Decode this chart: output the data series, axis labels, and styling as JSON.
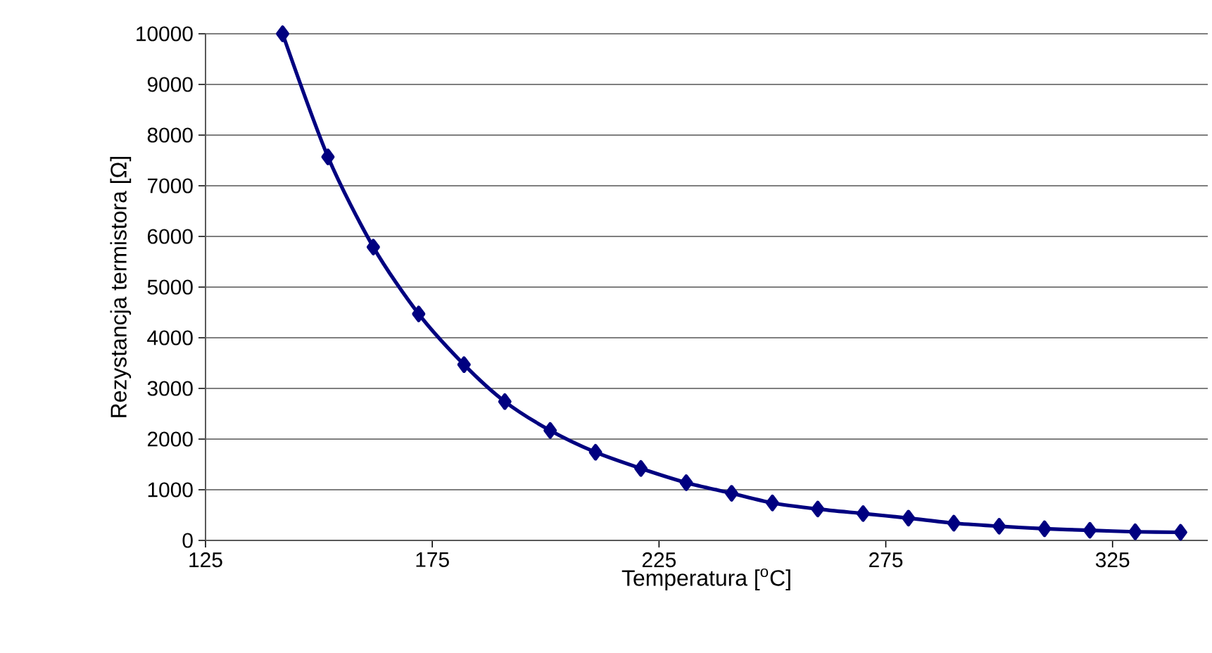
{
  "chart_data": {
    "type": "line",
    "xlabel": "Temperatura [$^{o}$C]",
    "ylabel": "Rezystancja termistora [Ω]",
    "x": [
      142,
      152,
      162,
      172,
      182,
      191,
      201,
      211,
      221,
      231,
      241,
      250,
      260,
      270,
      280,
      290,
      300,
      310,
      320,
      330,
      340
    ],
    "series": [
      {
        "color": "#000080",
        "values": [
          10000,
          7570,
          5790,
          4470,
          3470,
          2740,
          2170,
          1740,
          1420,
          1140,
          930,
          740,
          620,
          530,
          440,
          340,
          280,
          230,
          200,
          170,
          160
        ]
      }
    ],
    "xlim": [
      125,
      346
    ],
    "xticks": [
      125,
      175,
      225,
      275,
      325
    ],
    "ylim": [
      0,
      10000
    ],
    "yticks": [
      0,
      1000,
      2000,
      3000,
      4000,
      5000,
      6000,
      7000,
      8000,
      9000,
      10000
    ],
    "grid": "y",
    "marker": "diamond",
    "line_style": "solid"
  }
}
